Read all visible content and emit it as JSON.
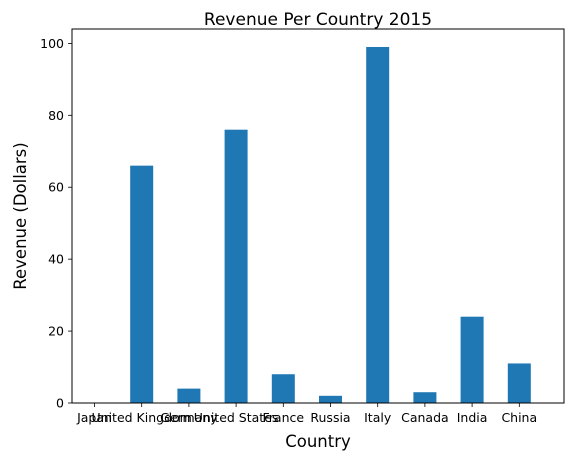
{
  "chart_data": {
    "type": "bar",
    "title": "Revenue Per Country 2015",
    "xlabel": "Country",
    "ylabel": "Revenue (Dollars)",
    "categories": [
      "Japan",
      "United Kingdom",
      "Germany",
      "United States",
      "France",
      "Russia",
      "Italy",
      "Canada",
      "India",
      "China"
    ],
    "values": [
      0,
      66,
      4,
      76,
      8,
      2,
      99,
      3,
      24,
      11
    ],
    "ylim": [
      0,
      104
    ],
    "yticks": [
      0,
      20,
      40,
      60,
      80,
      100
    ],
    "bar_color": "#1f77b4",
    "grid": false,
    "legend": "none"
  }
}
